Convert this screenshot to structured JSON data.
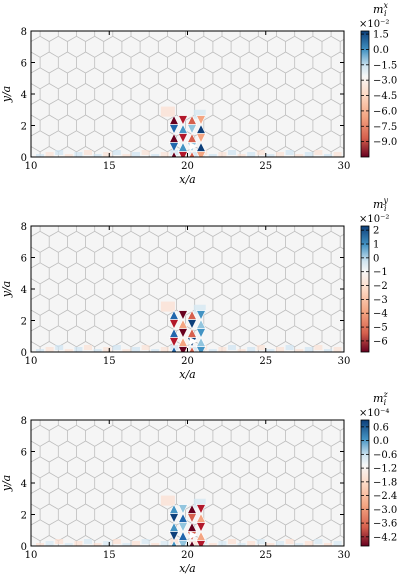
{
  "figure": {
    "panels": [
      {
        "cbar_title": "m_i^x",
        "cbar_multiplier": "×10⁻²",
        "cbar_ticks": [
          "1.5",
          "0.0",
          "−1.5",
          "−3.0",
          "−4.5",
          "−6.0",
          "−7.5",
          "−9.0"
        ],
        "cbar_range": [
          -10.5,
          1.8
        ],
        "xlabel": "x/a",
        "ylabel": "y/a",
        "xticks": [
          "10",
          "15",
          "20",
          "25",
          "30"
        ],
        "yticks": [
          "0",
          "2",
          "4",
          "6",
          "8"
        ]
      },
      {
        "cbar_title": "m_i^y",
        "cbar_multiplier": "×10⁻²",
        "cbar_ticks": [
          "2",
          "1",
          "0",
          "−1",
          "−2",
          "−3",
          "−4",
          "−5",
          "−6"
        ],
        "cbar_range": [
          -6.8,
          2.3
        ],
        "xlabel": "x/a",
        "ylabel": "y/a",
        "xticks": [
          "10",
          "15",
          "20",
          "25",
          "30"
        ],
        "yticks": [
          "0",
          "2",
          "4",
          "6",
          "8"
        ]
      },
      {
        "cbar_title": "m_i^z",
        "cbar_multiplier": "×10⁻⁴",
        "cbar_ticks": [
          "0.6",
          "0.0",
          "−0.6",
          "−1.2",
          "−1.8",
          "−2.4",
          "−3.0",
          "−3.6",
          "−4.2"
        ],
        "cbar_range": [
          -4.6,
          0.9
        ],
        "xlabel": "x/a",
        "ylabel": "y/a",
        "xticks": [
          "10",
          "15",
          "20",
          "25",
          "30"
        ],
        "yticks": [
          "0",
          "2",
          "4",
          "6",
          "8"
        ]
      }
    ]
  },
  "chart_data": [
    {
      "type": "heatmap",
      "title": "",
      "xlabel": "x/a",
      "ylabel": "y/a",
      "xlim": [
        10,
        30
      ],
      "ylim": [
        0,
        8
      ],
      "colorbar_label": "m_i^x",
      "colorbar_scale": "×10⁻²",
      "colorbar_range": [
        -10.5,
        1.8
      ],
      "colormap": "RdBu",
      "grid": "honeycomb lattice",
      "features": [
        {
          "x": 20,
          "y": 1.2,
          "description": "strong localized magnetization pattern near (20, 1)"
        }
      ]
    },
    {
      "type": "heatmap",
      "title": "",
      "xlabel": "x/a",
      "ylabel": "y/a",
      "xlim": [
        10,
        30
      ],
      "ylim": [
        0,
        8
      ],
      "colorbar_label": "m_i^y",
      "colorbar_scale": "×10⁻²",
      "colorbar_range": [
        -6.8,
        2.3
      ],
      "colormap": "RdBu",
      "grid": "honeycomb lattice"
    },
    {
      "type": "heatmap",
      "title": "",
      "xlabel": "x/a",
      "ylabel": "y/a",
      "xlim": [
        10,
        30
      ],
      "ylim": [
        0,
        8
      ],
      "colorbar_label": "m_i^z",
      "colorbar_scale": "×10⁻⁴",
      "colorbar_range": [
        -4.6,
        0.9
      ],
      "colormap": "RdBu",
      "grid": "honeycomb lattice"
    }
  ]
}
